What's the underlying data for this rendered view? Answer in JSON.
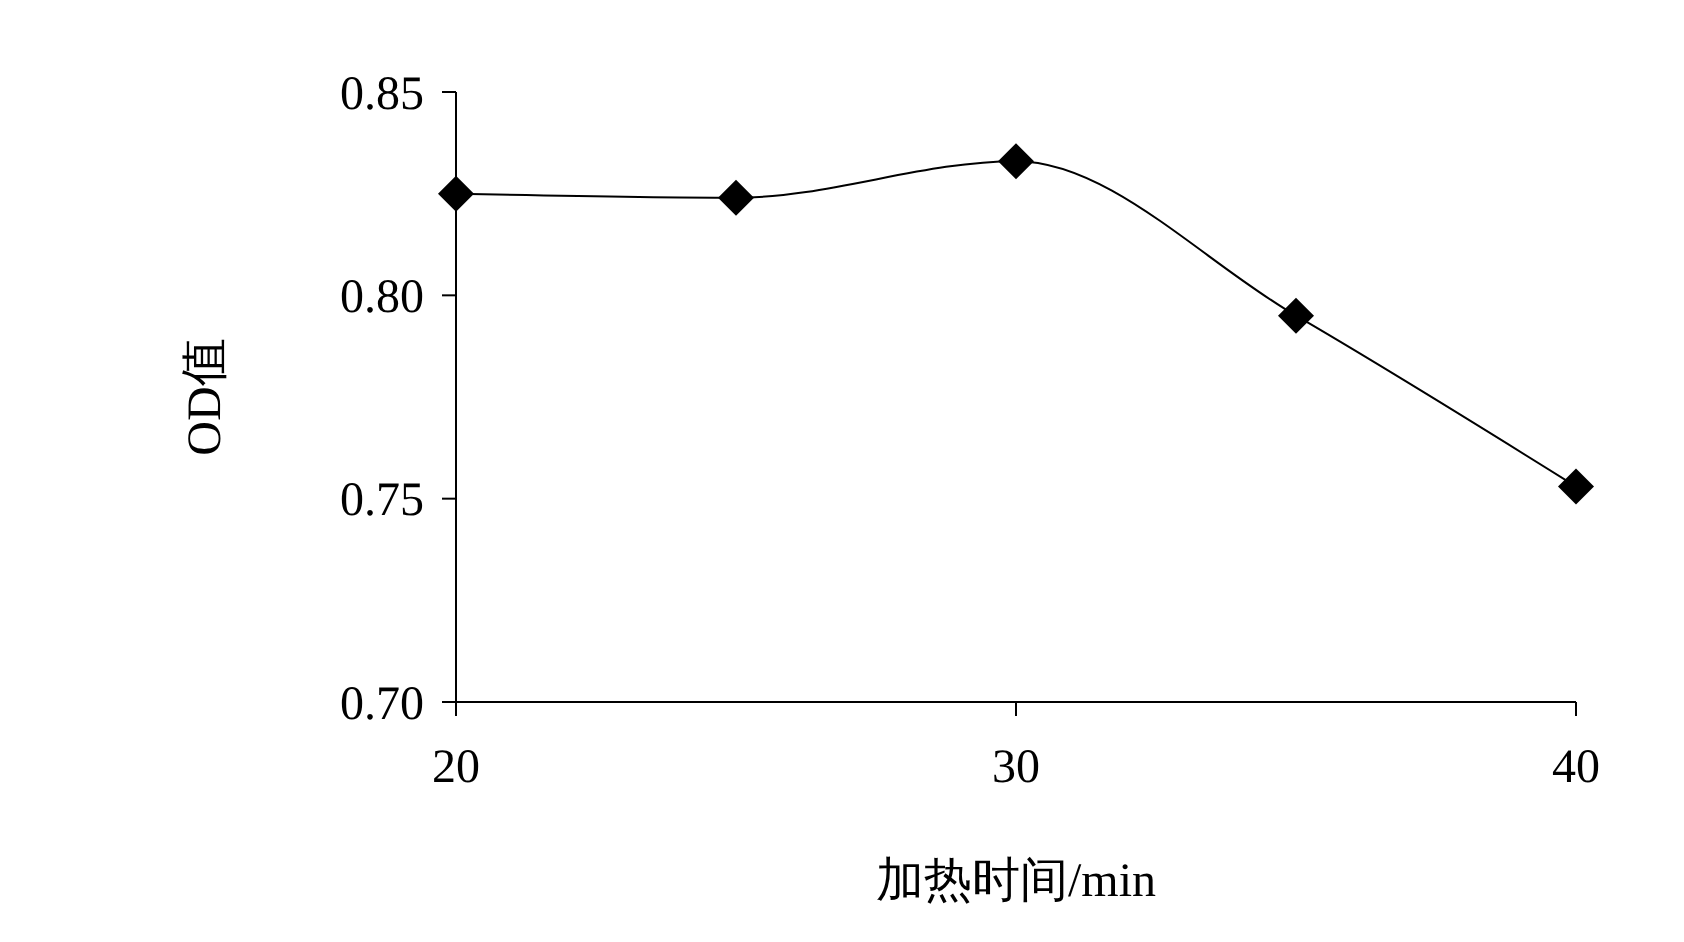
{
  "chart_data": {
    "type": "line",
    "xlabel": "加热时间/min",
    "ylabel": "OD值",
    "x": [
      20,
      25,
      30,
      35,
      40
    ],
    "series": [
      {
        "color": "#000000",
        "values": [
          0.825,
          0.824,
          0.833,
          0.795,
          0.753
        ]
      }
    ],
    "xlim": [
      20,
      40
    ],
    "xticks": [
      20,
      30,
      40
    ],
    "ylim": [
      0.7,
      0.85
    ],
    "yticks": [
      {
        "value": 0.7,
        "label": "0.70"
      },
      {
        "value": 0.75,
        "label": "0.75"
      },
      {
        "value": 0.8,
        "label": "0.80"
      },
      {
        "value": 0.85,
        "label": "0.85"
      }
    ],
    "marker": "diamond",
    "grid": false
  }
}
